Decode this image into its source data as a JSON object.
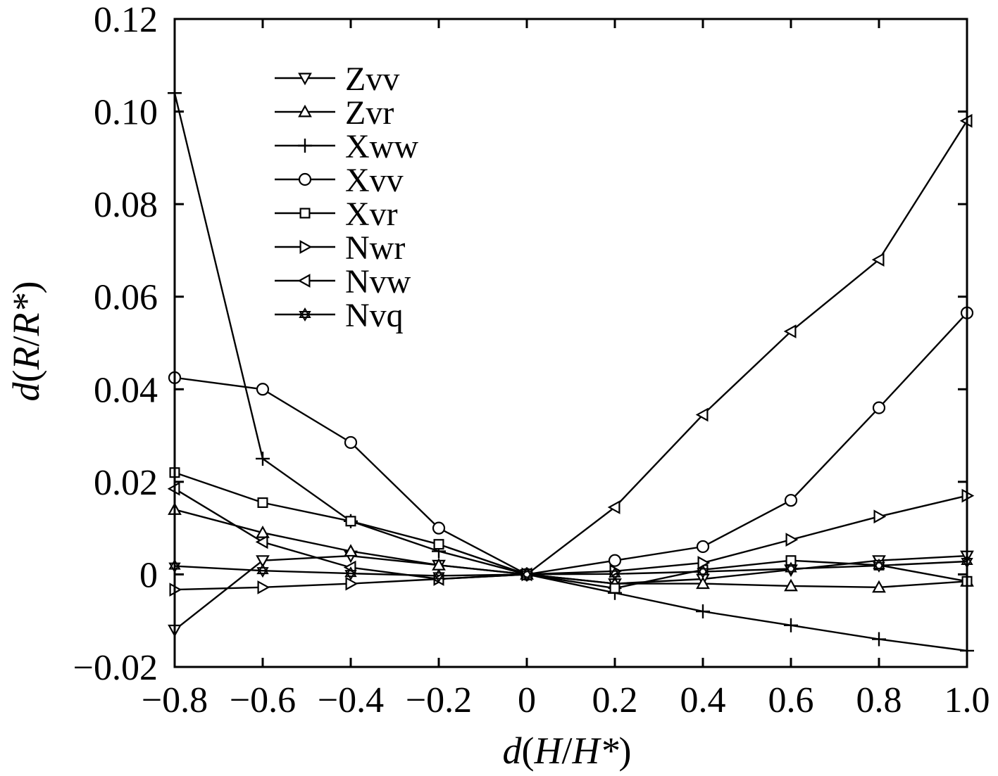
{
  "chart_data": {
    "type": "line",
    "title": "",
    "xlabel_parts": {
      "prefix": "d",
      "open": "(",
      "num": "H",
      "slash": "/",
      "den": "H*",
      "close": ")"
    },
    "ylabel_parts": {
      "prefix": "d",
      "open": "(",
      "num": "R",
      "slash": "/",
      "den": "R*",
      "close": ")"
    },
    "xlim": [
      -0.8,
      1.0
    ],
    "ylim": [
      -0.02,
      0.12
    ],
    "x_ticks": [
      -0.8,
      -0.6,
      -0.4,
      -0.2,
      0,
      0.2,
      0.4,
      0.6,
      0.8,
      1.0
    ],
    "x_tick_labels": [
      "−0.8",
      "−0.6",
      "−0.4",
      "−0.2",
      "0",
      "0.2",
      "0.4",
      "0.6",
      "0.8",
      "1.0"
    ],
    "y_ticks": [
      -0.02,
      0,
      0.02,
      0.04,
      0.06,
      0.08,
      0.1,
      0.12
    ],
    "y_tick_labels": [
      "−0.02",
      "0",
      "0.02",
      "0.04",
      "0.06",
      "0.08",
      "0.10",
      "0.12"
    ],
    "grid": false,
    "legend_position": "top-left",
    "x": [
      -0.8,
      -0.6,
      -0.4,
      -0.2,
      0,
      0.2,
      0.4,
      0.6,
      0.8,
      1.0
    ],
    "series": [
      {
        "name": "Zvv",
        "marker": "triangle-down",
        "values": [
          -0.012,
          0.003,
          0.004,
          0.002,
          0,
          -0.002,
          -0.001,
          0.001,
          0.003,
          0.004
        ]
      },
      {
        "name": "Zvr",
        "marker": "triangle-up",
        "values": [
          0.014,
          0.009,
          0.005,
          0.002,
          0,
          -0.002,
          -0.002,
          -0.0025,
          -0.0028,
          -0.0015
        ]
      },
      {
        "name": "Xww",
        "marker": "plus",
        "values": [
          0.104,
          0.025,
          0.0115,
          0.005,
          0,
          -0.004,
          -0.008,
          -0.011,
          -0.014,
          -0.0165
        ]
      },
      {
        "name": "Xvv",
        "marker": "circle",
        "values": [
          0.0425,
          0.04,
          0.0285,
          0.01,
          0,
          0.003,
          0.006,
          0.016,
          0.036,
          0.0565
        ]
      },
      {
        "name": "Xvr",
        "marker": "square",
        "values": [
          0.022,
          0.0155,
          0.0115,
          0.0065,
          0,
          -0.003,
          0.001,
          0.003,
          0.002,
          -0.0015
        ]
      },
      {
        "name": "Nwr",
        "marker": "triangle-right",
        "values": [
          -0.0033,
          -0.0028,
          -0.002,
          -0.001,
          0,
          0.0007,
          0.0025,
          0.0075,
          0.0125,
          0.017
        ]
      },
      {
        "name": "Nvw",
        "marker": "triangle-left",
        "values": [
          0.0185,
          0.007,
          0.0015,
          -0.001,
          0,
          0.0145,
          0.0345,
          0.0525,
          0.068,
          0.098
        ]
      },
      {
        "name": "Nvq",
        "marker": "star",
        "values": [
          0.0018,
          0.0008,
          0.0002,
          -0.0003,
          0,
          0.0001,
          0.0006,
          0.0012,
          0.0019,
          0.0028
        ]
      }
    ]
  }
}
